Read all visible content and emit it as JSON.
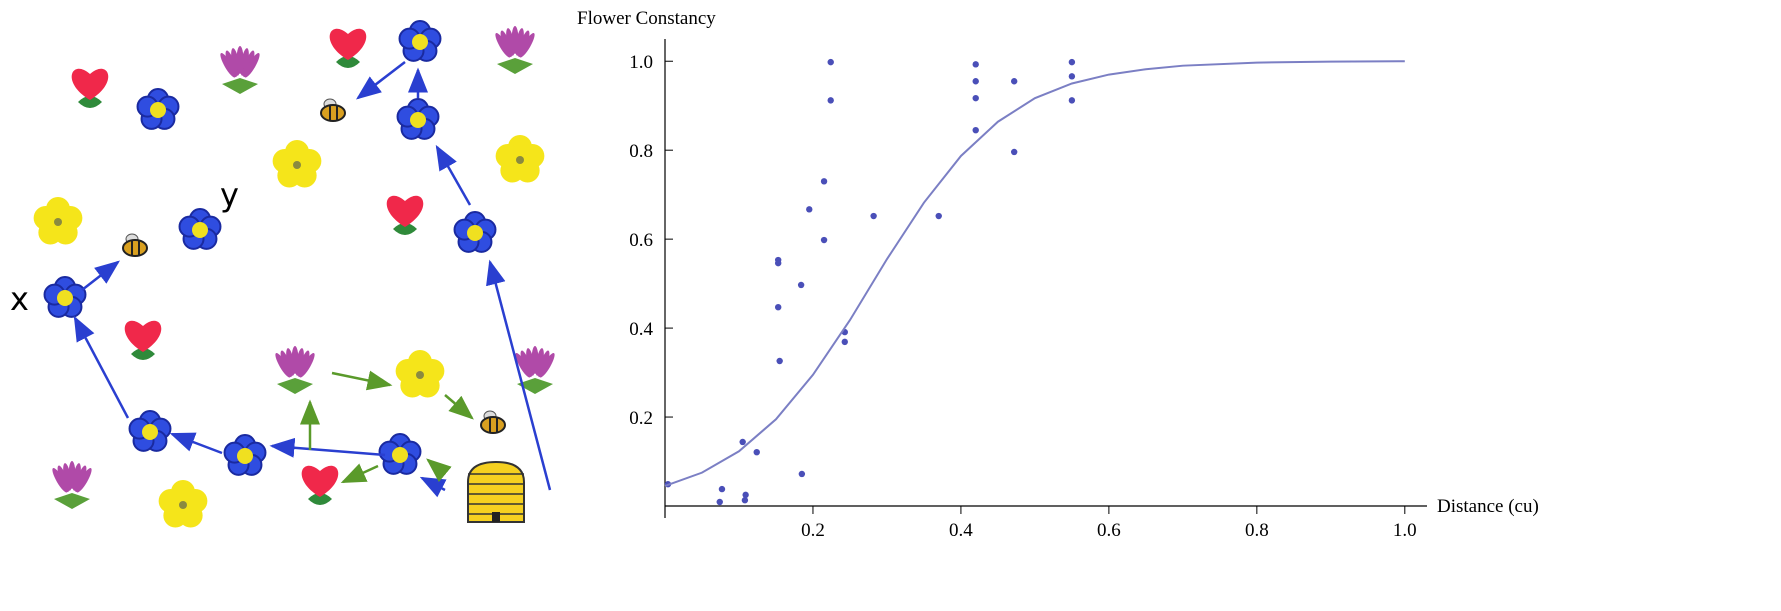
{
  "illustration": {
    "labels": [
      "x",
      "y"
    ]
  },
  "chart_data": {
    "type": "scatter",
    "y_label": "Flower Constancy",
    "x_label": "Distance (cu)",
    "xlim": [
      0,
      1.03
    ],
    "ylim": [
      0,
      1.05
    ],
    "xticks": [
      0.2,
      0.4,
      0.6,
      0.8,
      {
        "value": 1,
        "label": "1.0"
      }
    ],
    "yticks": [
      0.2,
      0.4,
      0.6,
      0.8,
      {
        "value": 1,
        "label": "1.0"
      }
    ],
    "series": [
      {
        "color": "#4a4fb8",
        "x": [
          0.004,
          0.077,
          0.074,
          0.105,
          0.109,
          0.108,
          0.124,
          0.153,
          0.153,
          0.153,
          0.155,
          0.184,
          0.185,
          0.195,
          0.215,
          0.215,
          0.224,
          0.224,
          0.243,
          0.243,
          0.282,
          0.37,
          0.42,
          0.42,
          0.42,
          0.42,
          0.472,
          0.472,
          0.55,
          0.55,
          0.55
        ],
        "values": [
          0.049,
          0.038,
          0.009,
          0.144,
          0.025,
          0.013,
          0.121,
          0.553,
          0.546,
          0.447,
          0.326,
          0.497,
          0.072,
          0.667,
          0.73,
          0.598,
          0.998,
          0.912,
          0.391,
          0.369,
          0.652,
          0.652,
          0.993,
          0.955,
          0.917,
          0.845,
          0.955,
          0.796,
          0.998,
          0.966,
          0.912
        ]
      },
      {
        "type": "line",
        "color": "#7b7fc4",
        "x": [
          0,
          0.05,
          0.1,
          0.15,
          0.2,
          0.25,
          0.3,
          0.35,
          0.4,
          0.45,
          0.5,
          0.55,
          0.6,
          0.65,
          0.7,
          0.8,
          0.9,
          1
        ],
        "values": [
          0.045,
          0.075,
          0.123,
          0.195,
          0.295,
          0.418,
          0.555,
          0.682,
          0.787,
          0.864,
          0.917,
          0.95,
          0.97,
          0.982,
          0.99,
          0.997,
          0.999,
          1
        ]
      }
    ]
  }
}
